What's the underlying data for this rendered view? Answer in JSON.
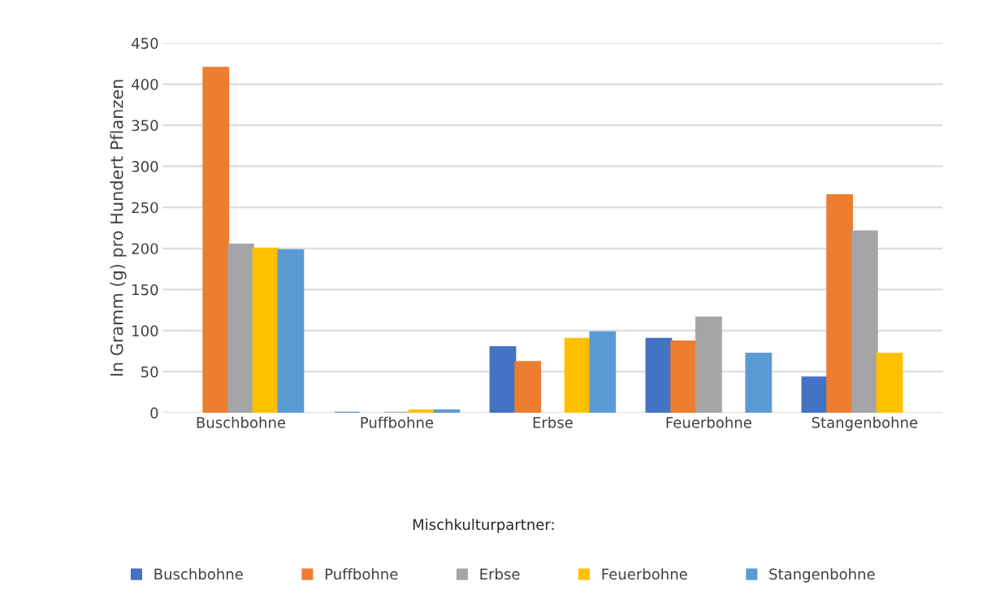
{
  "chart_data": {
    "type": "bar",
    "ylabel": "In Gramm (g) pro Hundert Pflanzen",
    "legend_title": "Mischkulturpartner:",
    "categories": [
      "Buschbohne",
      "Puffbohne",
      "Erbse",
      "Feuerbohne",
      "Stangenbohne"
    ],
    "series": [
      {
        "name": "Buschbohne",
        "color": "#4472c4",
        "values": [
          null,
          0,
          80,
          90,
          43
        ]
      },
      {
        "name": "Puffbohne",
        "color": "#ed7d31",
        "values": [
          420,
          null,
          62,
          87,
          265
        ]
      },
      {
        "name": "Erbse",
        "color": "#a5a5a5",
        "values": [
          205,
          0,
          null,
          116,
          221
        ]
      },
      {
        "name": "Feuerbohne",
        "color": "#ffc000",
        "values": [
          200,
          3,
          90,
          null,
          72
        ]
      },
      {
        "name": "Stangenbohne",
        "color": "#5b9bd5",
        "values": [
          198,
          3,
          98,
          72,
          null
        ]
      }
    ],
    "ylim": [
      0,
      450
    ],
    "yticks": [
      0,
      50,
      100,
      150,
      200,
      250,
      300,
      350,
      400,
      450
    ],
    "grid": "y",
    "legend": "bottom"
  }
}
